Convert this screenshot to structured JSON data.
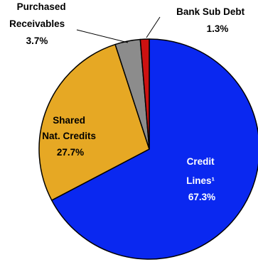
{
  "chart_data": {
    "type": "pie",
    "title": "",
    "slices": [
      {
        "label_lines": [
          "Credit",
          "Lines¹"
        ],
        "value": 67.3,
        "value_label": "67.3%",
        "color": "#0a28f0",
        "label_color": "#ffffff"
      },
      {
        "label_lines": [
          "Shared",
          "Nat. Credits"
        ],
        "value": 27.7,
        "value_label": "27.7%",
        "color": "#e6a824",
        "label_color": "#000000"
      },
      {
        "label_lines": [
          "Purchased",
          "Receivables"
        ],
        "value": 3.7,
        "value_label": "3.7%",
        "color": "#8c8c8c",
        "label_color": "#000000"
      },
      {
        "label_lines": [
          "Bank Sub Debt"
        ],
        "value": 1.3,
        "value_label": "1.3%",
        "color": "#cc1111",
        "label_color": "#000000"
      }
    ],
    "start_angle_deg": 0,
    "direction": "clockwise",
    "legend": "none"
  }
}
